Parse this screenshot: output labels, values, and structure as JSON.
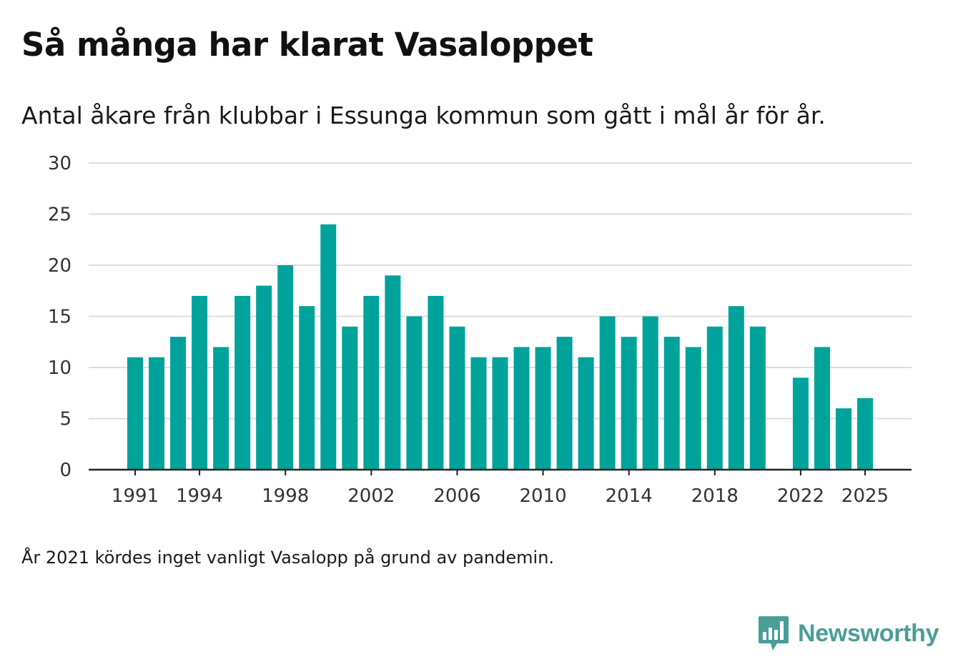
{
  "title": "Så många har klarat Vasaloppet",
  "subtitle": "Antal åkare från klubbar i Essunga kommun som gått i mål år för år.",
  "note": "År 2021 kördes inget vanligt Vasalopp på grund av pandemin.",
  "logo": {
    "text": "Newsworthy",
    "icon": "newsworthy-chart-icon",
    "color": "#4a9e97"
  },
  "colors": {
    "bar": "#00a39a",
    "grid": "#dddddd",
    "axis": "#222222",
    "text": "#333333"
  },
  "chart_data": {
    "type": "bar",
    "title": "Så många har klarat Vasaloppet",
    "xlabel": "",
    "ylabel": "",
    "ylim": [
      0,
      30
    ],
    "yticks": [
      0,
      5,
      10,
      15,
      20,
      25,
      30
    ],
    "grid": true,
    "categories": [
      1991,
      1992,
      1993,
      1994,
      1995,
      1996,
      1997,
      1998,
      1999,
      2000,
      2001,
      2002,
      2003,
      2004,
      2005,
      2006,
      2007,
      2008,
      2009,
      2010,
      2011,
      2012,
      2013,
      2014,
      2015,
      2016,
      2017,
      2018,
      2019,
      2020,
      2021,
      2022,
      2023,
      2024,
      2025
    ],
    "values": [
      11,
      11,
      13,
      17,
      12,
      17,
      18,
      20,
      16,
      24,
      14,
      17,
      19,
      15,
      17,
      14,
      11,
      11,
      12,
      12,
      13,
      11,
      15,
      13,
      15,
      13,
      12,
      14,
      16,
      14,
      null,
      9,
      12,
      6,
      7
    ],
    "xtick_labels": [
      "1991",
      "1994",
      "1998",
      "2002",
      "2006",
      "2010",
      "2014",
      "2018",
      "2022",
      "2025"
    ]
  }
}
